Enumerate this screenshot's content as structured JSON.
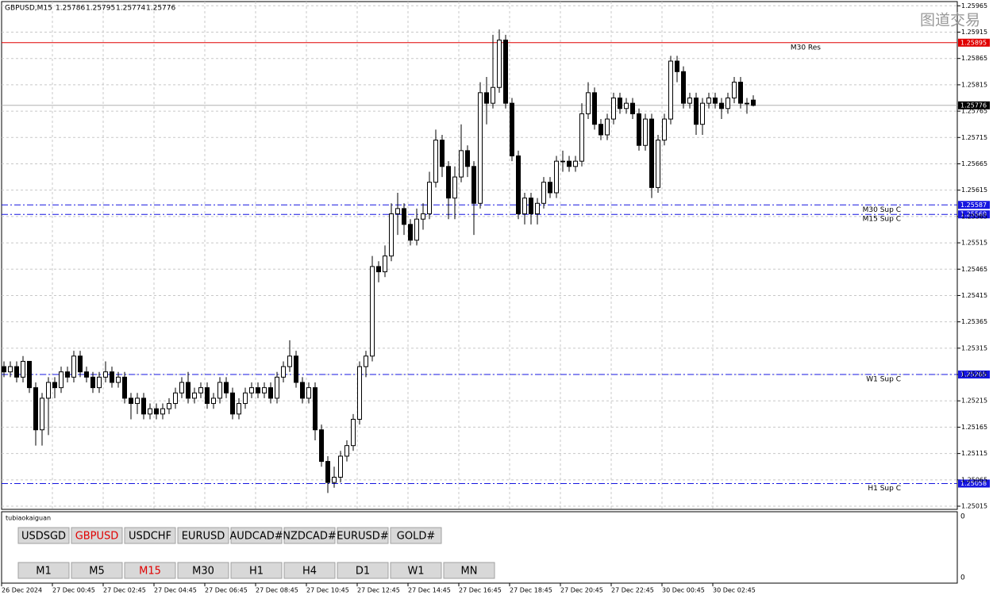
{
  "window": {
    "symbol": "GBPUSD,M15",
    "watermark": "图道交易"
  },
  "chart_data": {
    "type": "candlestick",
    "ylim": [
      1.25009,
      1.25973
    ],
    "yticks": [
      1.25965,
      1.25915,
      1.25865,
      1.25815,
      1.25765,
      1.25715,
      1.25665,
      1.25615,
      1.25565,
      1.25515,
      1.25465,
      1.25415,
      1.25365,
      1.25315,
      1.25265,
      1.25215,
      1.25165,
      1.25115,
      1.25065,
      1.25015
    ],
    "grid": true,
    "x_labels": [
      "26 Dec 2024",
      "27 Dec 00:45",
      "27 Dec 02:45",
      "27 Dec 04:45",
      "27 Dec 06:45",
      "27 Dec 08:45",
      "27 Dec 10:45",
      "27 Dec 12:45",
      "27 Dec 14:45",
      "27 Dec 16:45",
      "27 Dec 18:45",
      "27 Dec 20:45",
      "27 Dec 22:45",
      "30 Dec 00:45",
      "30 Dec 02:45"
    ],
    "levels": [
      {
        "name": "M30 Res",
        "value": 1.25895,
        "color": "#e00000"
      },
      {
        "name": "M30 Sup C",
        "value": 1.25587,
        "color": "#1515e0"
      },
      {
        "name": "M15 Sup C",
        "value": 1.25569,
        "color": "#1515e0"
      },
      {
        "name": "W1 Sup C",
        "value": 1.25265,
        "color": "#1515e0"
      },
      {
        "name": "H1 Sup C",
        "value": 1.25058,
        "color": "#1515e0"
      }
    ],
    "ohlc": [
      [
        1.2528,
        1.2529,
        1.2526,
        1.2527
      ],
      [
        1.2527,
        1.2529,
        1.2526,
        1.2528
      ],
      [
        1.2528,
        1.2529,
        1.2525,
        1.2526
      ],
      [
        1.2526,
        1.253,
        1.2525,
        1.2529
      ],
      [
        1.2529,
        1.2529,
        1.2523,
        1.2524
      ],
      [
        1.2524,
        1.2525,
        1.2513,
        1.2516
      ],
      [
        1.2516,
        1.2523,
        1.2513,
        1.2522
      ],
      [
        1.2522,
        1.2526,
        1.2515,
        1.2525
      ],
      [
        1.2525,
        1.2526,
        1.2522,
        1.2524
      ],
      [
        1.2524,
        1.2528,
        1.2523,
        1.2527
      ],
      [
        1.2527,
        1.2528,
        1.2525,
        1.2526
      ],
      [
        1.2526,
        1.2531,
        1.2525,
        1.253
      ],
      [
        1.253,
        1.2531,
        1.2526,
        1.2527
      ],
      [
        1.2527,
        1.2528,
        1.2525,
        1.2526
      ],
      [
        1.2526,
        1.2527,
        1.2523,
        1.2524
      ],
      [
        1.2524,
        1.2527,
        1.2523,
        1.2526
      ],
      [
        1.2526,
        1.2529,
        1.2525,
        1.2527
      ],
      [
        1.2527,
        1.2528,
        1.2524,
        1.2525
      ],
      [
        1.2525,
        1.2527,
        1.2524,
        1.2526
      ],
      [
        1.2526,
        1.2527,
        1.2521,
        1.2522
      ],
      [
        1.2522,
        1.2523,
        1.2518,
        1.2521
      ],
      [
        1.2521,
        1.2523,
        1.2519,
        1.2522
      ],
      [
        1.2522,
        1.2523,
        1.2518,
        1.2519
      ],
      [
        1.2519,
        1.2521,
        1.2518,
        1.252
      ],
      [
        1.252,
        1.2521,
        1.2518,
        1.2519
      ],
      [
        1.2519,
        1.2521,
        1.2518,
        1.252
      ],
      [
        1.252,
        1.2522,
        1.2519,
        1.2521
      ],
      [
        1.2521,
        1.2524,
        1.252,
        1.2523
      ],
      [
        1.2523,
        1.2526,
        1.2522,
        1.2525
      ],
      [
        1.2525,
        1.2527,
        1.2521,
        1.2522
      ],
      [
        1.2522,
        1.2524,
        1.2521,
        1.2523
      ],
      [
        1.2523,
        1.2525,
        1.2522,
        1.2524
      ],
      [
        1.2524,
        1.2525,
        1.252,
        1.2521
      ],
      [
        1.2521,
        1.2523,
        1.252,
        1.2522
      ],
      [
        1.2522,
        1.2526,
        1.2521,
        1.2525
      ],
      [
        1.2525,
        1.2526,
        1.2522,
        1.2523
      ],
      [
        1.2523,
        1.2524,
        1.2518,
        1.2519
      ],
      [
        1.2519,
        1.2522,
        1.2518,
        1.2521
      ],
      [
        1.2521,
        1.2524,
        1.252,
        1.2523
      ],
      [
        1.2523,
        1.2525,
        1.2522,
        1.2524
      ],
      [
        1.2524,
        1.2525,
        1.2522,
        1.2523
      ],
      [
        1.2523,
        1.2525,
        1.2522,
        1.2524
      ],
      [
        1.2524,
        1.2525,
        1.2521,
        1.2522
      ],
      [
        1.2522,
        1.2527,
        1.2521,
        1.2526
      ],
      [
        1.2526,
        1.2529,
        1.2525,
        1.2528
      ],
      [
        1.2528,
        1.2533,
        1.2527,
        1.253
      ],
      [
        1.253,
        1.2531,
        1.2524,
        1.2525
      ],
      [
        1.2525,
        1.2526,
        1.2521,
        1.2522
      ],
      [
        1.2522,
        1.2525,
        1.2521,
        1.2524
      ],
      [
        1.2524,
        1.2525,
        1.2514,
        1.2516
      ],
      [
        1.2516,
        1.2517,
        1.2509,
        1.251
      ],
      [
        1.251,
        1.2511,
        1.2504,
        1.2506
      ],
      [
        1.2506,
        1.2509,
        1.2505,
        1.2507
      ],
      [
        1.2507,
        1.2512,
        1.2506,
        1.2511
      ],
      [
        1.2511,
        1.2514,
        1.251,
        1.2513
      ],
      [
        1.2513,
        1.2519,
        1.2512,
        1.2518
      ],
      [
        1.2518,
        1.2529,
        1.2517,
        1.2528
      ],
      [
        1.2528,
        1.2531,
        1.2526,
        1.253
      ],
      [
        1.253,
        1.2549,
        1.2529,
        1.2547
      ],
      [
        1.2547,
        1.2548,
        1.2544,
        1.2546
      ],
      [
        1.2546,
        1.2551,
        1.2545,
        1.2549
      ],
      [
        1.2549,
        1.2559,
        1.2548,
        1.2557
      ],
      [
        1.2557,
        1.2561,
        1.2553,
        1.2558
      ],
      [
        1.2558,
        1.2559,
        1.2553,
        1.2555
      ],
      [
        1.2555,
        1.2556,
        1.2551,
        1.2552
      ],
      [
        1.2552,
        1.2558,
        1.2551,
        1.2556
      ],
      [
        1.2556,
        1.2559,
        1.2554,
        1.2557
      ],
      [
        1.2557,
        1.2565,
        1.2556,
        1.2563
      ],
      [
        1.2563,
        1.2573,
        1.2562,
        1.2571
      ],
      [
        1.2571,
        1.2572,
        1.2564,
        1.2566
      ],
      [
        1.2566,
        1.2567,
        1.2556,
        1.256
      ],
      [
        1.256,
        1.2566,
        1.2556,
        1.2564
      ],
      [
        1.2564,
        1.2574,
        1.2563,
        1.2569
      ],
      [
        1.2569,
        1.257,
        1.2564,
        1.2566
      ],
      [
        1.2566,
        1.2567,
        1.2553,
        1.2559
      ],
      [
        1.2559,
        1.2582,
        1.2558,
        1.258
      ],
      [
        1.258,
        1.2583,
        1.2574,
        1.2578
      ],
      [
        1.2578,
        1.2591,
        1.2577,
        1.2581
      ],
      [
        1.2581,
        1.2592,
        1.258,
        1.259
      ],
      [
        1.259,
        1.2591,
        1.2577,
        1.2578
      ],
      [
        1.2578,
        1.2579,
        1.2567,
        1.2568
      ],
      [
        1.2568,
        1.2569,
        1.2556,
        1.2557
      ],
      [
        1.2557,
        1.2561,
        1.2555,
        1.256
      ],
      [
        1.256,
        1.2561,
        1.2555,
        1.2557
      ],
      [
        1.2557,
        1.256,
        1.2555,
        1.2559
      ],
      [
        1.2559,
        1.2564,
        1.2558,
        1.2563
      ],
      [
        1.2563,
        1.2564,
        1.256,
        1.2561
      ],
      [
        1.2561,
        1.2568,
        1.256,
        1.2567
      ],
      [
        1.2567,
        1.2569,
        1.2565,
        1.2567
      ],
      [
        1.2567,
        1.2568,
        1.2565,
        1.2566
      ],
      [
        1.2566,
        1.2568,
        1.2565,
        1.2567
      ],
      [
        1.2567,
        1.2578,
        1.2566,
        1.2576
      ],
      [
        1.2576,
        1.2582,
        1.2575,
        1.258
      ],
      [
        1.258,
        1.2581,
        1.2573,
        1.2574
      ],
      [
        1.2574,
        1.2575,
        1.2571,
        1.2572
      ],
      [
        1.2572,
        1.2576,
        1.2571,
        1.2575
      ],
      [
        1.2575,
        1.258,
        1.2574,
        1.2579
      ],
      [
        1.2579,
        1.258,
        1.2576,
        1.2577
      ],
      [
        1.2577,
        1.2579,
        1.2576,
        1.2578
      ],
      [
        1.2578,
        1.2579,
        1.2575,
        1.2576
      ],
      [
        1.2576,
        1.2577,
        1.2569,
        1.257
      ],
      [
        1.257,
        1.2576,
        1.2569,
        1.2575
      ],
      [
        1.2575,
        1.2576,
        1.256,
        1.2562
      ],
      [
        1.2562,
        1.2572,
        1.2561,
        1.2571
      ],
      [
        1.2571,
        1.2576,
        1.257,
        1.2575
      ],
      [
        1.2575,
        1.2587,
        1.2574,
        1.2586
      ],
      [
        1.2586,
        1.2587,
        1.2582,
        1.2584
      ],
      [
        1.2584,
        1.2585,
        1.2577,
        1.2578
      ],
      [
        1.2578,
        1.258,
        1.2577,
        1.2579
      ],
      [
        1.2579,
        1.258,
        1.2572,
        1.2574
      ],
      [
        1.2574,
        1.2579,
        1.2572,
        1.2578
      ],
      [
        1.2578,
        1.258,
        1.2577,
        1.2579
      ],
      [
        1.2579,
        1.258,
        1.2577,
        1.2578
      ],
      [
        1.2578,
        1.2579,
        1.2575,
        1.2577
      ],
      [
        1.2577,
        1.258,
        1.2576,
        1.2579
      ],
      [
        1.2579,
        1.2583,
        1.2578,
        1.2582
      ],
      [
        1.2582,
        1.2583,
        1.2577,
        1.2578
      ],
      [
        1.2578,
        1.2579,
        1.2576,
        1.2578
      ],
      [
        1.25786,
        1.25795,
        1.25774,
        1.25776
      ]
    ]
  },
  "indicator": {
    "name": "tubiaokaiguan",
    "scale_labels": [
      "0",
      "0"
    ],
    "symbols": [
      "USDSGD",
      "GBPUSD",
      "USDCHF",
      "EURUSD",
      "AUDCAD#",
      "NZDCAD#",
      "EURUSD#",
      "GOLD#"
    ],
    "active_symbol": 1,
    "timeframes": [
      "M1",
      "M5",
      "M15",
      "M30",
      "H1",
      "H4",
      "D1",
      "W1",
      "MN"
    ],
    "active_timeframe": 2
  }
}
